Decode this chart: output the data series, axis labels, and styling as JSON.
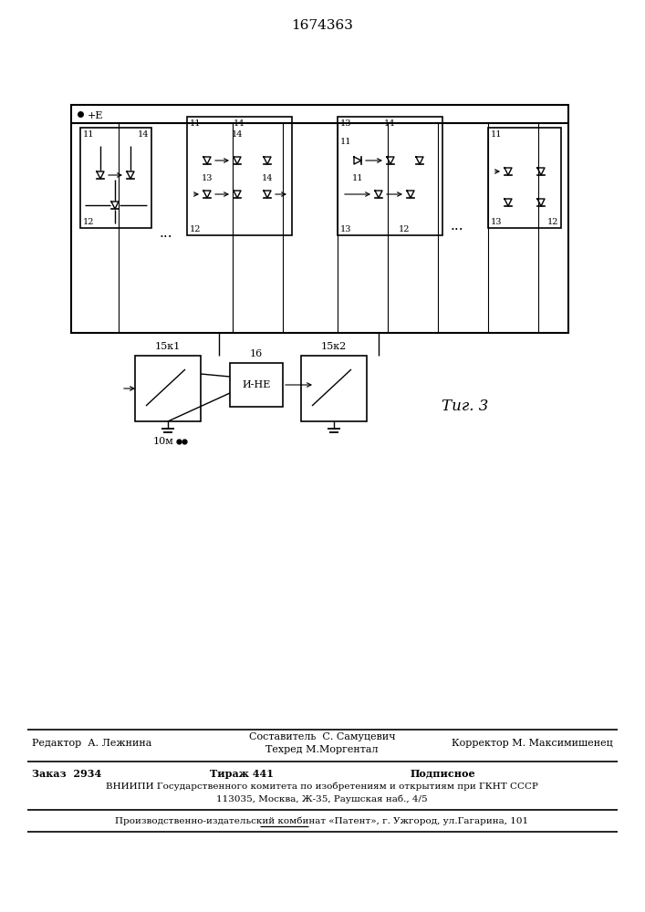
{
  "patent_number": "1674363",
  "fig_label": "Τиг. 3",
  "plus_e_label": "+E",
  "label_10m": "10м",
  "label_15k1": "15к1",
  "label_16": "16",
  "label_15k2": "15к2",
  "label_and_not": "И-НЕ",
  "footer_line1_left": "Редактор  А. Лежнина",
  "footer_line1_center": "Составитель  С. Самуцевич",
  "footer_line1b_center": "Техред М.Моргентал",
  "footer_line1_right": "Корректор М. Максимишенец",
  "footer_line2_left": "Заказ  2934",
  "footer_line2_center": "Тираж 441",
  "footer_line2_right": "Подписное",
  "footer_line3": "ВНИИПИ Государственного комитета по изобретениям и открытиям при ГКНТ СССР",
  "footer_line4": "113035, Москва, Ж-35, Раушская наб., 4/5",
  "footer_line5": "Производственно-издательский комбинат «Патент», г. Ужгород, ул.Гагарина, 101",
  "bg_color": "#ffffff",
  "line_color": "#000000"
}
